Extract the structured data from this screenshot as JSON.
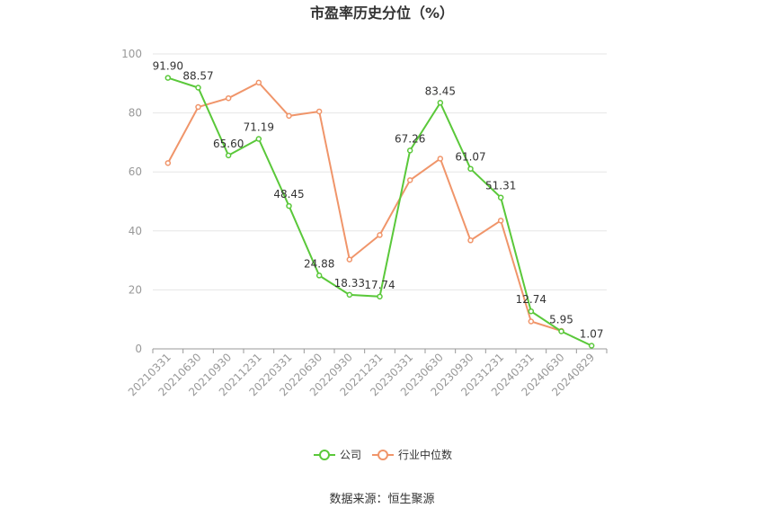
{
  "chart_data": {
    "type": "line",
    "title": "市盈率历史分位（%）",
    "categories": [
      "20210331",
      "20210630",
      "20210930",
      "20211231",
      "20220331",
      "20220630",
      "20220930",
      "20221231",
      "20230331",
      "20230630",
      "20230930",
      "20231231",
      "20240331",
      "20240630",
      "20240829"
    ],
    "series": [
      {
        "name": "公司",
        "color": "#5ac83a",
        "values": [
          91.9,
          88.57,
          65.6,
          71.19,
          48.45,
          24.88,
          18.33,
          17.74,
          67.26,
          83.45,
          61.07,
          51.31,
          12.74,
          5.95,
          1.07
        ],
        "labels": [
          "91.90",
          "88.57",
          "65.60",
          "71.19",
          "48.45",
          "24.88",
          "18.33",
          "17.74",
          "67.26",
          "83.45",
          "61.07",
          "51.31",
          "12.74",
          "5.95",
          "1.07"
        ]
      },
      {
        "name": "行业中位数",
        "color": "#f0956a",
        "values": [
          63,
          82,
          85,
          90.3,
          79,
          80.5,
          30.3,
          38.6,
          57.2,
          64.5,
          36.8,
          43.5,
          9.3,
          6.1,
          null
        ]
      }
    ],
    "yticks": [
      "0",
      "20",
      "40",
      "60",
      "80",
      "100"
    ],
    "ylim": [
      0,
      100
    ],
    "grid": true,
    "legend_position": "bottom-center"
  },
  "source_text": "数据来源：恒生聚源"
}
